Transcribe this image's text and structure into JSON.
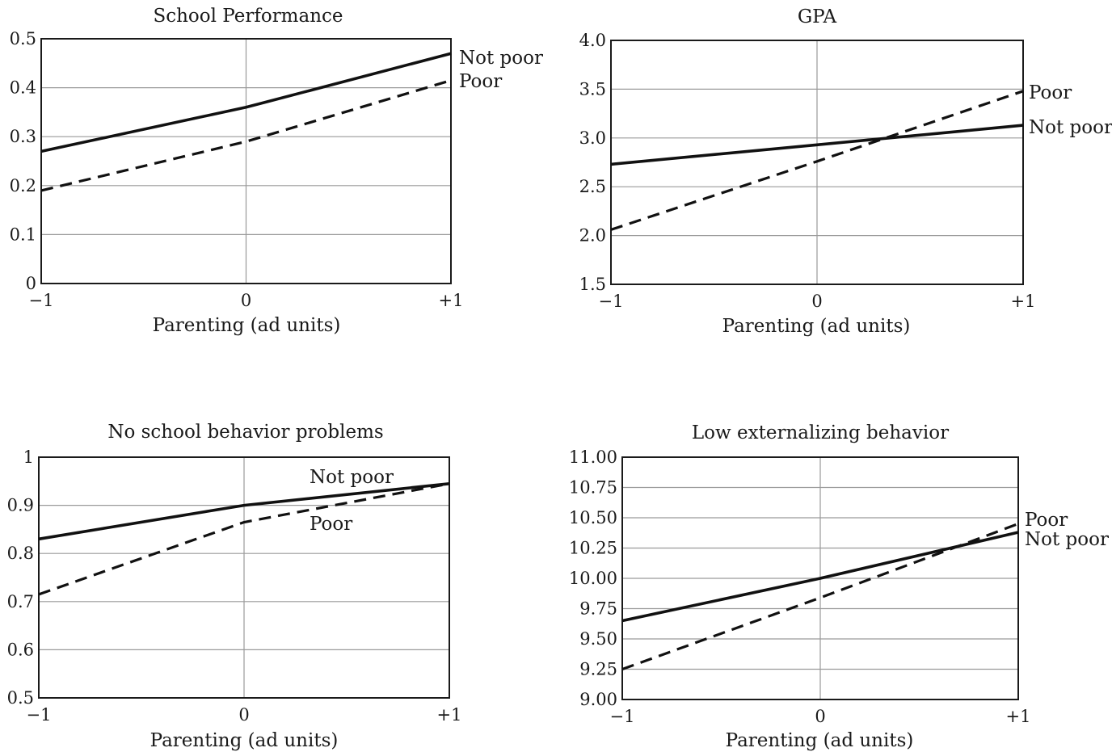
{
  "chart_data": [
    {
      "type": "line",
      "title": "School Performance",
      "xlabel": "Parenting (ad units)",
      "x": [
        -1,
        0,
        1
      ],
      "x_tick_labels": [
        "−1",
        "0",
        "+1"
      ],
      "ylim": [
        0,
        0.5
      ],
      "y_ticks": [
        0,
        0.1,
        0.2,
        0.3,
        0.4,
        0.5
      ],
      "y_tick_labels": [
        "0",
        "0.1",
        "0.2",
        "0.3",
        "0.4",
        "0.5"
      ],
      "grid": true,
      "series": [
        {
          "name": "Not poor",
          "style": "solid",
          "values": [
            0.27,
            0.36,
            0.47
          ]
        },
        {
          "name": "Poor",
          "style": "dashed",
          "values": [
            0.19,
            0.29,
            0.415
          ]
        }
      ]
    },
    {
      "type": "line",
      "title": "GPA",
      "xlabel": "Parenting (ad units)",
      "x": [
        -1,
        0,
        1
      ],
      "x_tick_labels": [
        "−1",
        "0",
        "+1"
      ],
      "ylim": [
        1.5,
        4.0
      ],
      "y_ticks": [
        1.5,
        2.0,
        2.5,
        3.0,
        3.5,
        4.0
      ],
      "y_tick_labels": [
        "1.5",
        "2.0",
        "2.5",
        "3.0",
        "3.5",
        "4.0"
      ],
      "grid": true,
      "series": [
        {
          "name": "Poor",
          "style": "dashed",
          "values": [
            2.06,
            2.76,
            3.48
          ]
        },
        {
          "name": "Not poor",
          "style": "solid",
          "values": [
            2.73,
            2.93,
            3.13
          ]
        }
      ]
    },
    {
      "type": "line",
      "title": "No school behavior problems",
      "xlabel": "Parenting (ad units)",
      "x": [
        -1,
        0,
        1
      ],
      "x_tick_labels": [
        "−1",
        "0",
        "+1"
      ],
      "ylim": [
        0.5,
        1.0
      ],
      "y_ticks": [
        0.5,
        0.6,
        0.7,
        0.8,
        0.9,
        1.0
      ],
      "y_tick_labels": [
        "0.5",
        "0.6",
        "0.7",
        "0.8",
        "0.9",
        "1"
      ],
      "grid": true,
      "series": [
        {
          "name": "Not poor",
          "style": "solid",
          "values": [
            0.83,
            0.9,
            0.945
          ]
        },
        {
          "name": "Poor",
          "style": "dashed",
          "values": [
            0.715,
            0.865,
            0.945
          ]
        }
      ]
    },
    {
      "type": "line",
      "title": "Low externalizing behavior",
      "xlabel": "Parenting (ad units)",
      "x": [
        -1,
        0,
        1
      ],
      "x_tick_labels": [
        "−1",
        "0",
        "+1"
      ],
      "ylim": [
        9.0,
        11.0
      ],
      "y_ticks": [
        9.0,
        9.25,
        9.5,
        9.75,
        10.0,
        10.25,
        10.5,
        10.75,
        11.0
      ],
      "y_tick_labels": [
        "9.00",
        "9.25",
        "9.50",
        "9.75",
        "10.00",
        "10.25",
        "10.50",
        "10.75",
        "11.00"
      ],
      "grid": true,
      "series": [
        {
          "name": "Poor",
          "style": "dashed",
          "values": [
            9.25,
            9.84,
            10.45
          ]
        },
        {
          "name": "Not poor",
          "style": "solid",
          "values": [
            9.65,
            10.0,
            10.38
          ]
        }
      ]
    }
  ]
}
